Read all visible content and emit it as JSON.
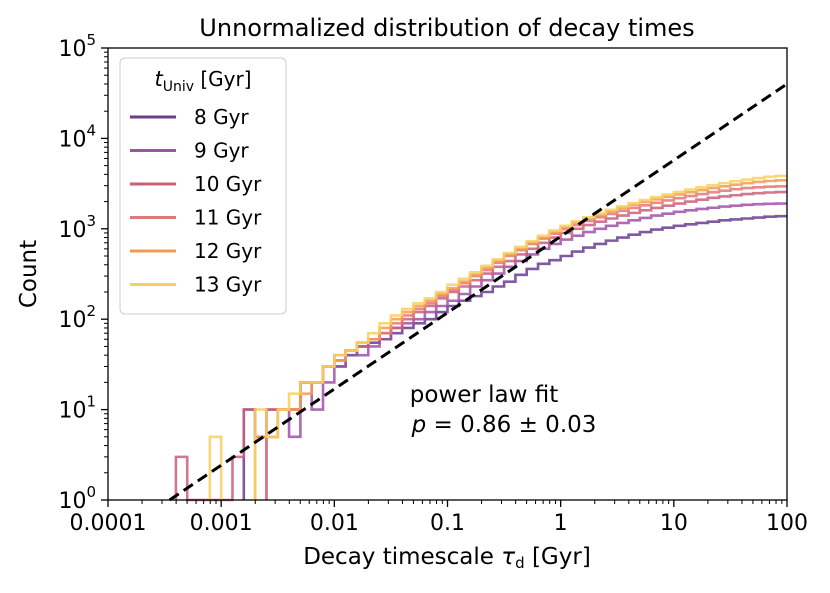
{
  "chart_data": {
    "type": "histogram",
    "title": "Unnormalized distribution of decay times",
    "xlabel": "Decay timescale",
    "xlabel_symbol": "τ",
    "xlabel_sub": "d",
    "xlabel_unit": "[Gyr]",
    "ylabel": "Count",
    "xscale": "log",
    "yscale": "log",
    "xlim": [
      0.0001,
      100
    ],
    "ylim": [
      1,
      100000
    ],
    "x_ticks": [
      {
        "value": 0.0001,
        "label": "0.0001"
      },
      {
        "value": 0.001,
        "label": "0.001"
      },
      {
        "value": 0.01,
        "label": "0.01"
      },
      {
        "value": 0.1,
        "label": "0.1"
      },
      {
        "value": 1,
        "label": "1"
      },
      {
        "value": 10,
        "label": "10"
      },
      {
        "value": 100,
        "label": "100"
      }
    ],
    "y_ticks": [
      {
        "value": 1,
        "base": "10",
        "exp": "0"
      },
      {
        "value": 10,
        "base": "10",
        "exp": "1"
      },
      {
        "value": 100,
        "base": "10",
        "exp": "2"
      },
      {
        "value": 1000,
        "base": "10",
        "exp": "3"
      },
      {
        "value": 10000,
        "base": "10",
        "exp": "4"
      },
      {
        "value": 100000,
        "base": "10",
        "exp": "5"
      }
    ],
    "legend": {
      "title_symbol": "t",
      "title_sub": "Univ",
      "title_unit": "[Gyr]",
      "position": "upper-left"
    },
    "bins": {
      "log10_min": -4,
      "log10_max": 2,
      "count": 60
    },
    "series": [
      {
        "name": "8 Gyr",
        "color": "#6a3d8f",
        "counts": [
          0,
          0,
          0,
          0,
          0,
          0,
          0,
          0,
          0,
          0,
          0,
          0,
          10,
          5,
          5,
          10,
          10,
          20,
          20,
          30,
          30,
          40,
          50,
          55,
          60,
          70,
          80,
          90,
          100,
          120,
          140,
          160,
          180,
          200,
          230,
          260,
          310,
          360,
          410,
          450,
          500,
          560,
          620,
          680,
          740,
          800,
          860,
          920,
          980,
          1030,
          1080,
          1120,
          1160,
          1200,
          1240,
          1270,
          1300,
          1330,
          1360,
          1380
        ]
      },
      {
        "name": "9 Gyr",
        "color": "#a050a8",
        "counts": [
          0,
          0,
          0,
          0,
          0,
          0,
          0,
          0,
          0,
          0,
          0,
          0,
          0,
          0,
          10,
          10,
          5,
          20,
          10,
          20,
          30,
          45,
          40,
          50,
          60,
          80,
          90,
          100,
          120,
          140,
          160,
          190,
          230,
          270,
          320,
          380,
          440,
          520,
          600,
          680,
          760,
          840,
          920,
          1000,
          1080,
          1160,
          1240,
          1320,
          1400,
          1470,
          1540,
          1600,
          1660,
          1710,
          1760,
          1800,
          1840,
          1870,
          1890,
          1900
        ]
      },
      {
        "name": "10 Gyr",
        "color": "#c8607a",
        "counts": [
          0,
          0,
          0,
          0,
          0,
          0,
          3,
          1,
          1,
          1,
          1,
          3,
          10,
          5,
          10,
          10,
          10,
          20,
          20,
          30,
          35,
          45,
          50,
          60,
          70,
          80,
          100,
          120,
          140,
          170,
          200,
          230,
          270,
          320,
          380,
          440,
          520,
          600,
          700,
          800,
          900,
          1000,
          1100,
          1200,
          1300,
          1400,
          1500,
          1600,
          1700,
          1800,
          1900,
          2000,
          2100,
          2200,
          2280,
          2350,
          2420,
          2480,
          2520,
          2550
        ]
      },
      {
        "name": "11 Gyr",
        "color": "#e07878",
        "counts": [
          0,
          0,
          0,
          0,
          0,
          0,
          0,
          0,
          0,
          0,
          0,
          0,
          0,
          0,
          5,
          10,
          10,
          20,
          20,
          30,
          40,
          45,
          55,
          60,
          70,
          90,
          110,
          130,
          150,
          180,
          210,
          250,
          300,
          350,
          420,
          500,
          580,
          680,
          780,
          880,
          990,
          1100,
          1220,
          1340,
          1460,
          1580,
          1700,
          1820,
          1940,
          2060,
          2180,
          2300,
          2420,
          2540,
          2640,
          2740,
          2820,
          2880,
          2920,
          2950
        ]
      },
      {
        "name": "12 Gyr",
        "color": "#f49a50",
        "counts": [
          0,
          0,
          0,
          0,
          0,
          0,
          0,
          0,
          0,
          0,
          0,
          0,
          0,
          5,
          5,
          10,
          10,
          15,
          20,
          30,
          35,
          45,
          55,
          60,
          80,
          100,
          120,
          140,
          160,
          190,
          220,
          260,
          310,
          370,
          440,
          520,
          600,
          700,
          800,
          920,
          1040,
          1160,
          1290,
          1420,
          1560,
          1700,
          1840,
          1980,
          2120,
          2260,
          2400,
          2540,
          2680,
          2820,
          2950,
          3080,
          3200,
          3300,
          3380,
          3440
        ]
      },
      {
        "name": "13 Gyr",
        "color": "#f8d060",
        "counts": [
          0,
          0,
          0,
          0,
          0,
          0,
          0,
          0,
          0,
          5,
          0,
          0,
          0,
          10,
          5,
          10,
          15,
          20,
          20,
          30,
          40,
          45,
          55,
          70,
          90,
          110,
          130,
          150,
          170,
          200,
          240,
          280,
          330,
          390,
          460,
          540,
          630,
          730,
          840,
          960,
          1080,
          1210,
          1340,
          1480,
          1620,
          1770,
          1920,
          2080,
          2240,
          2400,
          2560,
          2720,
          2880,
          3040,
          3200,
          3360,
          3500,
          3640,
          3760,
          3850
        ]
      }
    ],
    "fit_line": {
      "style": "dashed",
      "color": "#000000",
      "x": [
        0.00035,
        100
      ],
      "y": [
        1,
        40000
      ]
    },
    "annotation": {
      "line1": "power law fit",
      "line2_symbol": "p",
      "line2_rest": " = 0.86 ± 0.03",
      "anchor_x": 0.28,
      "anchor_y": 10
    }
  }
}
